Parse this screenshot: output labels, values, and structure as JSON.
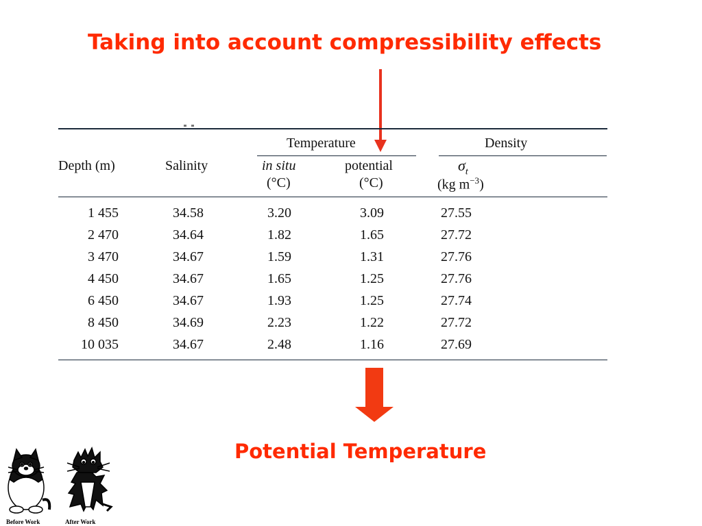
{
  "slide": {
    "title": "Taking into account compressibility effects",
    "conclusion": "Potential Temperature"
  },
  "table": {
    "group_headers": {
      "temperature": "Temperature",
      "density": "Density"
    },
    "columns": {
      "depth": "Depth (m)",
      "salinity": "Salinity",
      "in_situ": "in situ",
      "in_situ_unit": "(°C)",
      "potential": "potential",
      "potential_unit": "(°C)",
      "sigma": "σ",
      "sigma_sub": "t",
      "sigma_unit_a": "(kg m",
      "sigma_unit_exp": "−3",
      "sigma_unit_b": ")"
    },
    "rows": [
      {
        "depth": "1 455",
        "salinity": "34.58",
        "in_situ": "3.20",
        "potential": "3.09",
        "sigma": "27.55"
      },
      {
        "depth": "2 470",
        "salinity": "34.64",
        "in_situ": "1.82",
        "potential": "1.65",
        "sigma": "27.72"
      },
      {
        "depth": "3 470",
        "salinity": "34.67",
        "in_situ": "1.59",
        "potential": "1.31",
        "sigma": "27.76"
      },
      {
        "depth": "4 450",
        "salinity": "34.67",
        "in_situ": "1.65",
        "potential": "1.25",
        "sigma": "27.76"
      },
      {
        "depth": "6 450",
        "salinity": "34.67",
        "in_situ": "1.93",
        "potential": "1.25",
        "sigma": "27.74"
      },
      {
        "depth": "8 450",
        "salinity": "34.69",
        "in_situ": "2.23",
        "potential": "1.22",
        "sigma": "27.72"
      },
      {
        "depth": "10 035",
        "salinity": "34.67",
        "in_situ": "2.48",
        "potential": "1.16",
        "sigma": "27.69"
      }
    ]
  },
  "cartoon": {
    "before_label": "Before Work",
    "after_label": "After Work"
  },
  "colors": {
    "accent": "#ff2a00",
    "thin_arrow": "#e8321e",
    "rule": "#1b2a3a"
  },
  "icons": {
    "pointer_arrow": "thin-down-arrow",
    "result_arrow": "block-down-arrow"
  }
}
